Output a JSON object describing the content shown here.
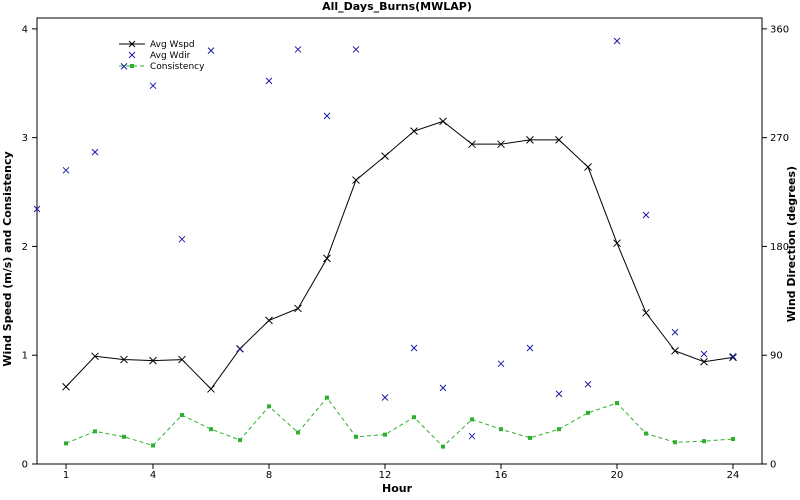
{
  "chart_data": {
    "type": "line",
    "title": "All_Days_Burns(MWLAP)",
    "xlabel": "Hour",
    "ylabel_left": "Wind Speed (m/s) and Consistency",
    "ylabel_right": "Wind Direction (degrees)",
    "xlim": [
      0,
      25
    ],
    "x_ticks": [
      1,
      4,
      8,
      12,
      16,
      20,
      24
    ],
    "ylim_left": [
      0,
      4.1
    ],
    "y_ticks_left": [
      0,
      1,
      2,
      3,
      4
    ],
    "ylim_right": [
      0,
      369
    ],
    "y_ticks_right": [
      0,
      90,
      180,
      270,
      360
    ],
    "grid": false,
    "legend_position": "top-left",
    "series": [
      {
        "name": "Avg Wspd",
        "axis": "left",
        "style": "line-x",
        "color": "#000000",
        "x": [
          1,
          2,
          3,
          4,
          5,
          6,
          7,
          8,
          9,
          10,
          11,
          12,
          13,
          14,
          15,
          16,
          17,
          18,
          19,
          20,
          21,
          22,
          23,
          24
        ],
        "y": [
          0.71,
          0.99,
          0.96,
          0.95,
          0.96,
          0.69,
          1.06,
          1.32,
          1.43,
          1.89,
          2.61,
          2.83,
          3.06,
          3.15,
          2.94,
          2.94,
          2.98,
          2.98,
          2.73,
          2.03,
          1.39,
          1.04,
          0.94,
          0.98
        ]
      },
      {
        "name": "Avg Wdir",
        "axis": "right",
        "style": "markers-x",
        "color": "#1a1aa6",
        "x": [
          0,
          1,
          2,
          3,
          4,
          5,
          6,
          7,
          8,
          9,
          10,
          11,
          12,
          13,
          14,
          15,
          16,
          17,
          18,
          19,
          20,
          21,
          22,
          23,
          24
        ],
        "y": [
          211,
          243,
          258,
          329,
          313,
          186,
          342,
          95,
          317,
          343,
          288,
          343,
          55,
          96,
          63,
          23,
          83,
          96,
          58,
          66,
          350,
          206,
          109,
          91,
          89
        ]
      },
      {
        "name": "Consistency",
        "axis": "left",
        "style": "dashed-dot",
        "color": "#2db02d",
        "x": [
          1,
          2,
          3,
          4,
          5,
          6,
          7,
          8,
          9,
          10,
          11,
          12,
          13,
          14,
          15,
          16,
          17,
          18,
          19,
          20,
          21,
          22,
          23,
          24
        ],
        "y": [
          0.19,
          0.3,
          0.25,
          0.17,
          0.45,
          0.32,
          0.22,
          0.53,
          0.29,
          0.61,
          0.25,
          0.27,
          0.43,
          0.16,
          0.41,
          0.32,
          0.24,
          0.32,
          0.47,
          0.56,
          0.28,
          0.2,
          0.21,
          0.23
        ]
      }
    ]
  }
}
